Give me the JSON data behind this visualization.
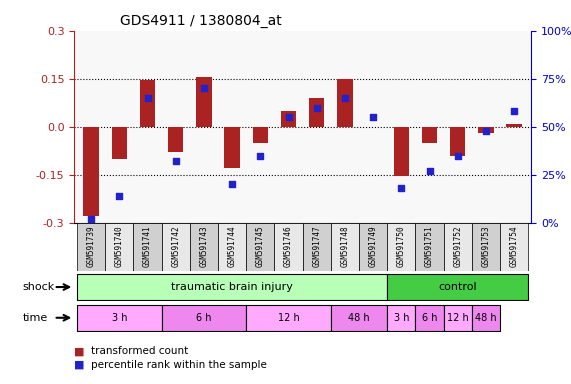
{
  "title": "GDS4911 / 1380804_at",
  "samples": [
    "GSM591739",
    "GSM591740",
    "GSM591741",
    "GSM591742",
    "GSM591743",
    "GSM591744",
    "GSM591745",
    "GSM591746",
    "GSM591747",
    "GSM591748",
    "GSM591749",
    "GSM591750",
    "GSM591751",
    "GSM591752",
    "GSM591753",
    "GSM591754"
  ],
  "bar_values": [
    -0.28,
    -0.1,
    0.145,
    -0.08,
    0.155,
    -0.13,
    -0.05,
    0.05,
    0.09,
    0.15,
    0.0,
    -0.155,
    -0.05,
    -0.09,
    -0.02,
    0.01
  ],
  "dot_values": [
    2,
    14,
    65,
    32,
    70,
    20,
    35,
    55,
    60,
    65,
    55,
    18,
    27,
    35,
    48,
    58
  ],
  "bar_color": "#aa2222",
  "dot_color": "#2222cc",
  "ylim_left": [
    -0.3,
    0.3
  ],
  "ylim_right": [
    0,
    100
  ],
  "yticks_left": [
    -0.3,
    -0.15,
    0.0,
    0.15,
    0.3
  ],
  "yticks_right": [
    0,
    25,
    50,
    75,
    100
  ],
  "ytick_labels_right": [
    "0%",
    "25%",
    "50%",
    "75%",
    "100%"
  ],
  "hlines": [
    -0.15,
    0.0,
    0.15
  ],
  "shock_label": "shock",
  "time_label": "time",
  "shock_groups": [
    {
      "label": "traumatic brain injury",
      "start": 0,
      "end": 11,
      "color": "#aaffaa"
    },
    {
      "label": "control",
      "start": 11,
      "end": 15,
      "color": "#aaffaa"
    }
  ],
  "time_groups": [
    {
      "label": "3 h",
      "start": 0,
      "end": 3,
      "color": "#ffaaff"
    },
    {
      "label": "6 h",
      "start": 3,
      "end": 6,
      "color": "#dd88dd"
    },
    {
      "label": "12 h",
      "start": 6,
      "end": 9,
      "color": "#ffaaff"
    },
    {
      "label": "48 h",
      "start": 9,
      "end": 11,
      "color": "#dd88dd"
    },
    {
      "label": "3 h",
      "start": 11,
      "end": 12,
      "color": "#ffaaff"
    },
    {
      "label": "6 h",
      "start": 12,
      "end": 13,
      "color": "#dd88dd"
    },
    {
      "label": "12 h",
      "start": 13,
      "end": 14,
      "color": "#ffaaff"
    },
    {
      "label": "48 h",
      "start": 14,
      "end": 15,
      "color": "#dd88dd"
    }
  ],
  "legend_items": [
    {
      "label": "transformed count",
      "color": "#aa2222",
      "marker": "s"
    },
    {
      "label": "percentile rank within the sample",
      "color": "#2222cc",
      "marker": "s"
    }
  ],
  "bg_color": "#ffffff",
  "grid_color": "#000000",
  "axis_color_left": "#aa2222",
  "axis_color_right": "#0000cc"
}
